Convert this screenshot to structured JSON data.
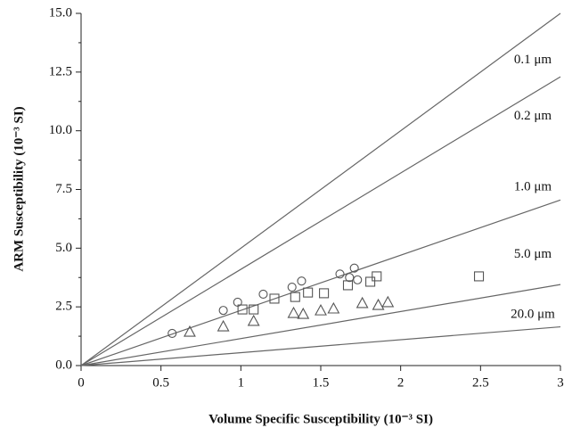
{
  "chart_data": {
    "type": "scatter",
    "x_label": "Volume Specific Susceptibility (10⁻³ SI)",
    "y_label": "ARM Susceptibility (10⁻³ SI)",
    "xlim": [
      0,
      3
    ],
    "ylim": [
      0,
      15
    ],
    "xticks": [
      0,
      0.5,
      1,
      1.5,
      2,
      2.5,
      3
    ],
    "yticks": [
      {
        "value": 0,
        "label": "0.0"
      },
      {
        "value": 2.5,
        "label": "2.5"
      },
      {
        "value": 5,
        "label": "5.0"
      },
      {
        "value": 7.5,
        "label": "7.5"
      },
      {
        "value": 10,
        "label": "10.0"
      },
      {
        "value": 12.5,
        "label": "12.5"
      },
      {
        "value": 15,
        "label": "15.0"
      }
    ],
    "series": [
      {
        "type": "line",
        "name": "0.1 μm",
        "color": "#666",
        "x": [
          0,
          3
        ],
        "values": [
          0,
          15
        ]
      },
      {
        "type": "line",
        "name": "0.2 μm",
        "color": "#666",
        "x": [
          0,
          3
        ],
        "values": [
          0,
          12.3
        ]
      },
      {
        "type": "line",
        "name": "1.0 μm",
        "color": "#666",
        "x": [
          0,
          3
        ],
        "values": [
          0,
          7.05
        ]
      },
      {
        "type": "line",
        "name": "5.0 μm",
        "color": "#666",
        "x": [
          0,
          3
        ],
        "values": [
          0,
          3.45
        ]
      },
      {
        "type": "line",
        "name": "20.0 μm",
        "color": "#666",
        "x": [
          0,
          3
        ],
        "values": [
          0,
          1.65
        ]
      },
      {
        "type": "scatter",
        "marker": "circle",
        "color": "#555",
        "x": [
          0.57,
          0.89,
          0.98,
          1.14,
          1.32,
          1.38,
          1.62,
          1.68,
          1.71,
          1.73
        ],
        "values": [
          1.37,
          2.35,
          2.7,
          3.04,
          3.34,
          3.6,
          3.9,
          3.75,
          4.15,
          3.65
        ]
      },
      {
        "type": "scatter",
        "marker": "square",
        "color": "#555",
        "x": [
          1.01,
          1.08,
          1.21,
          1.34,
          1.42,
          1.52,
          1.67,
          1.81,
          1.85,
          2.49
        ],
        "values": [
          2.39,
          2.39,
          2.85,
          2.92,
          3.11,
          3.08,
          3.42,
          3.57,
          3.8,
          3.8
        ]
      },
      {
        "type": "scatter",
        "marker": "triangle",
        "color": "#555",
        "x": [
          0.68,
          0.89,
          1.08,
          1.33,
          1.39,
          1.5,
          1.58,
          1.76,
          1.86,
          1.92
        ],
        "values": [
          1.44,
          1.67,
          1.9,
          2.24,
          2.2,
          2.35,
          2.43,
          2.66,
          2.58,
          2.7
        ]
      }
    ]
  }
}
